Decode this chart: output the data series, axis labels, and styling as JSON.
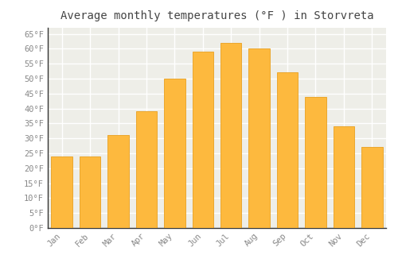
{
  "months": [
    "Jan",
    "Feb",
    "Mar",
    "Apr",
    "May",
    "Jun",
    "Jul",
    "Aug",
    "Sep",
    "Oct",
    "Nov",
    "Dec"
  ],
  "values": [
    24,
    24,
    31,
    39,
    50,
    59,
    62,
    60,
    52,
    44,
    34,
    27
  ],
  "bar_color": "#FDB93E",
  "bar_edge_color": "#E8A020",
  "title": "Average monthly temperatures (°F ) in Storvreta",
  "title_fontsize": 10,
  "ylim": [
    0,
    67
  ],
  "yticks": [
    0,
    5,
    10,
    15,
    20,
    25,
    30,
    35,
    40,
    45,
    50,
    55,
    60,
    65
  ],
  "background_color": "#EEEEE8",
  "plot_bg_color": "#EEEEE8",
  "title_bg_color": "#FFFFFF",
  "grid_color": "#FFFFFF",
  "tick_label_color": "#888888",
  "bar_width": 0.75,
  "tick_fontsize": 7.5
}
